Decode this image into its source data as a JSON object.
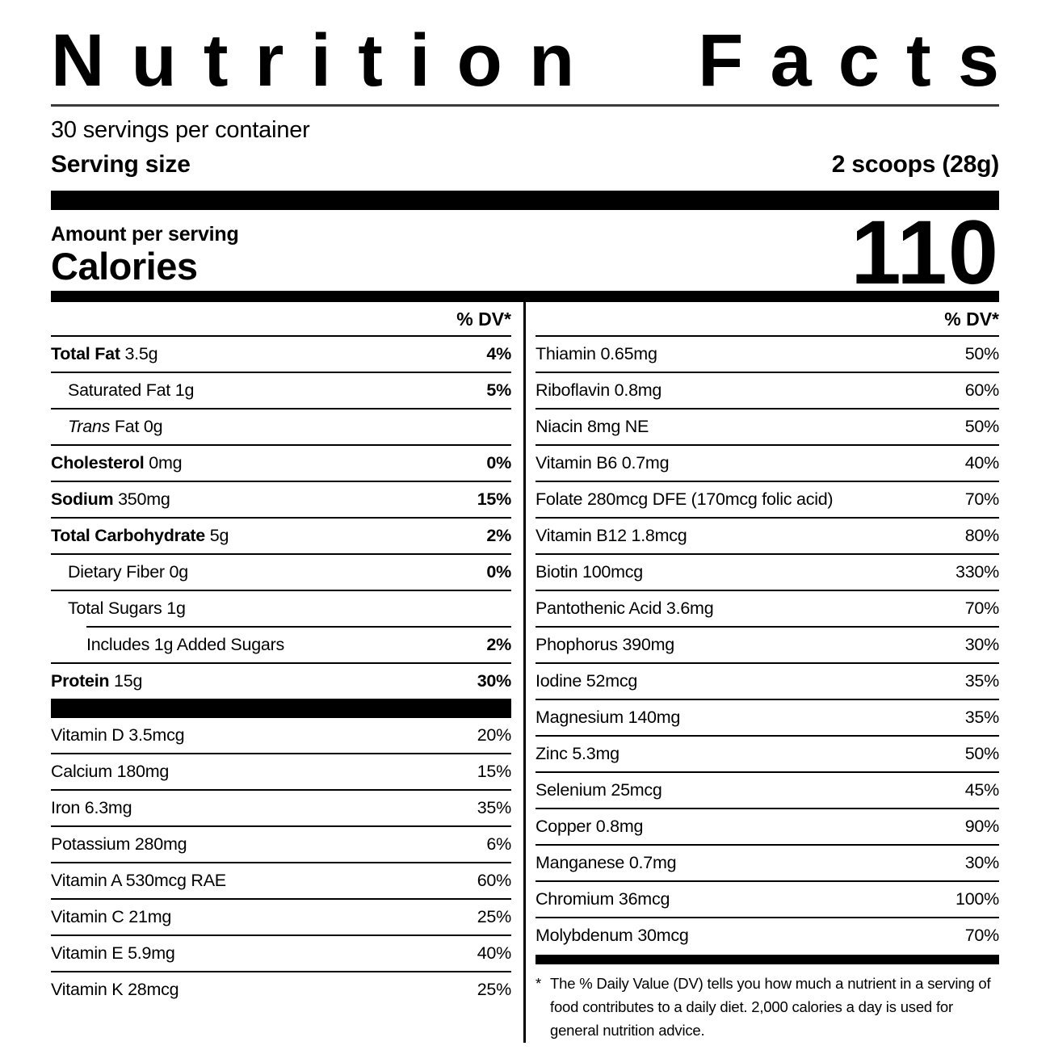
{
  "colors": {
    "text": "#000000",
    "background": "#ffffff",
    "rule": "#000000"
  },
  "header": {
    "title": "Nutrition Facts",
    "title_words": [
      "Nutrition",
      "Facts"
    ],
    "servings_per_container": "30 servings per container",
    "serving_size_label": "Serving size",
    "serving_size_value": "2 scoops (28g)"
  },
  "calories": {
    "amount_label": "Amount per serving",
    "label": "Calories",
    "value": "110"
  },
  "table": {
    "dv_header_label": "% DV*",
    "left": {
      "main_rows": [
        {
          "bold_label": "Total Fat",
          "text": "3.5g",
          "dv": "4%",
          "dv_bold": true,
          "indent": 0,
          "rule_below": "full"
        },
        {
          "text": "Saturated Fat 1g",
          "dv": "5%",
          "dv_bold": true,
          "indent": 1,
          "rule_below": "full"
        },
        {
          "italic_label": "Trans",
          "text": "Fat 0g",
          "dv": "",
          "indent": 1,
          "rule_below": "full"
        },
        {
          "bold_label": "Cholesterol",
          "text": "0mg",
          "dv": "0%",
          "dv_bold": true,
          "indent": 0,
          "rule_below": "full"
        },
        {
          "bold_label": "Sodium",
          "text": "350mg",
          "dv": "15%",
          "dv_bold": true,
          "indent": 0,
          "rule_below": "full"
        },
        {
          "bold_label": "Total Carbohydrate",
          "text": "5g",
          "dv": "2%",
          "dv_bold": true,
          "indent": 0,
          "rule_below": "full"
        },
        {
          "text": "Dietary Fiber 0g",
          "dv": "0%",
          "dv_bold": true,
          "indent": 1,
          "rule_below": "full"
        },
        {
          "text": "Total Sugars 1g",
          "dv": "",
          "indent": 1,
          "rule_below": "indent"
        },
        {
          "text": "Includes 1g Added Sugars",
          "dv": "2%",
          "dv_bold": true,
          "indent": 2,
          "rule_below": "full"
        },
        {
          "bold_label": "Protein",
          "text": "15g",
          "dv": "30%",
          "dv_bold": true,
          "indent": 0,
          "rule_below": "none"
        }
      ],
      "vitamin_rows": [
        {
          "text": "Vitamin D 3.5mcg",
          "dv": "20%",
          "rule_below": "full"
        },
        {
          "text": "Calcium 180mg",
          "dv": "15%",
          "rule_below": "full"
        },
        {
          "text": "Iron 6.3mg",
          "dv": "35%",
          "rule_below": "full"
        },
        {
          "text": "Potassium 280mg",
          "dv": "6%",
          "rule_below": "full"
        },
        {
          "text": "Vitamin A 530mcg RAE",
          "dv": "60%",
          "rule_below": "full"
        },
        {
          "text": "Vitamin C 21mg",
          "dv": "25%",
          "rule_below": "full"
        },
        {
          "text": "Vitamin E 5.9mg",
          "dv": "40%",
          "rule_below": "full"
        },
        {
          "text": "Vitamin K 28mcg",
          "dv": "25%",
          "rule_below": "none"
        }
      ]
    },
    "right": {
      "rows": [
        {
          "text": "Thiamin 0.65mg",
          "dv": "50%",
          "rule_below": "full"
        },
        {
          "text": "Riboflavin 0.8mg",
          "dv": "60%",
          "rule_below": "full"
        },
        {
          "text": "Niacin 8mg NE",
          "dv": "50%",
          "rule_below": "full"
        },
        {
          "text": "Vitamin B6 0.7mg",
          "dv": "40%",
          "rule_below": "full"
        },
        {
          "text": "Folate 280mcg DFE (170mcg folic acid)",
          "dv": "70%",
          "rule_below": "full"
        },
        {
          "text": "Vitamin B12 1.8mcg",
          "dv": "80%",
          "rule_below": "full"
        },
        {
          "text": "Biotin 100mcg",
          "dv": "330%",
          "rule_below": "full"
        },
        {
          "text": "Pantothenic Acid 3.6mg",
          "dv": "70%",
          "rule_below": "full"
        },
        {
          "text": "Phophorus 390mg",
          "dv": "30%",
          "rule_below": "full"
        },
        {
          "text": "Iodine 52mcg",
          "dv": "35%",
          "rule_below": "full"
        },
        {
          "text": "Magnesium 140mg",
          "dv": "35%",
          "rule_below": "full"
        },
        {
          "text": "Zinc 5.3mg",
          "dv": "50%",
          "rule_below": "full"
        },
        {
          "text": "Selenium 25mcg",
          "dv": "45%",
          "rule_below": "full"
        },
        {
          "text": "Copper 0.8mg",
          "dv": "90%",
          "rule_below": "full"
        },
        {
          "text": "Manganese 0.7mg",
          "dv": "30%",
          "rule_below": "full"
        },
        {
          "text": "Chromium 36mcg",
          "dv": "100%",
          "rule_below": "full"
        },
        {
          "text": "Molybdenum 30mcg",
          "dv": "70%",
          "rule_below": "none"
        }
      ]
    }
  },
  "footnote": {
    "marker": "*",
    "text": "The % Daily Value (DV) tells you how much a nutrient in a serving of food contributes to a daily diet. 2,000 calories a day is used for general nutrition advice."
  }
}
